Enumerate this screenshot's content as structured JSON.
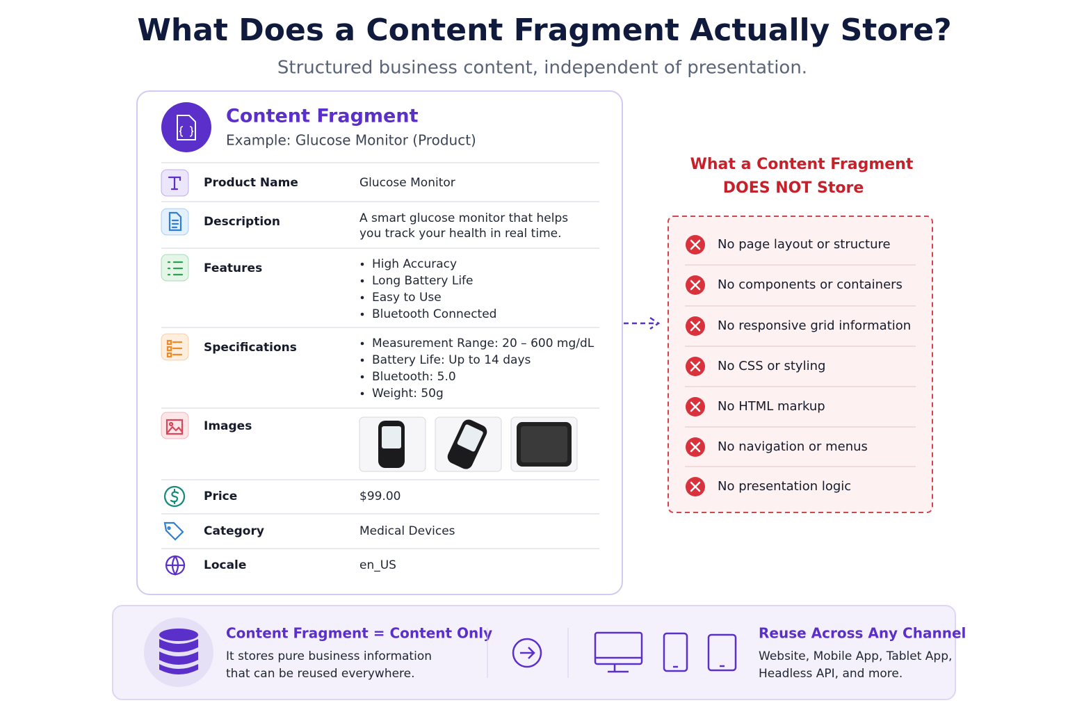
{
  "title": "What Does a Content Fragment Actually Store?",
  "subtitle": "Structured business content, independent of presentation.",
  "fragment": {
    "title": "Content Fragment",
    "subtitle": "Example: Glucose Monitor (Product)",
    "rows": [
      {
        "label": "Product Name",
        "value": "Glucose Monitor"
      },
      {
        "label": "Description",
        "lines": [
          "A smart glucose monitor that helps",
          "you track your health in real time."
        ]
      },
      {
        "label": "Features",
        "items": [
          "High Accuracy",
          "Long Battery Life",
          "Easy to Use",
          "Bluetooth Connected"
        ]
      },
      {
        "label": "Specifications",
        "items": [
          "Measurement Range: 20 – 600 mg/dL",
          "Battery Life: Up to 14 days",
          "Bluetooth: 5.0",
          "Weight: 50g"
        ]
      },
      {
        "label": "Images"
      },
      {
        "label": "Price",
        "value": "$99.00"
      },
      {
        "label": "Category",
        "value": "Medical Devices"
      },
      {
        "label": "Locale",
        "value": "en_US"
      }
    ]
  },
  "not_stored": {
    "title_lines": [
      "What a Content Fragment",
      "DOES NOT Store"
    ],
    "items": [
      "No page layout or structure",
      "No components or containers",
      "No responsive grid information",
      "No CSS or styling",
      "No HTML markup",
      "No navigation or menus",
      "No presentation logic"
    ]
  },
  "footer": {
    "left": {
      "title": "Content Fragment = Content Only",
      "lines": [
        "It stores pure business information",
        "that can be reused everywhere."
      ]
    },
    "right": {
      "title": "Reuse Across Any Channel",
      "lines": [
        "Website, Mobile App, Tablet App,",
        "Headless API, and more."
      ]
    }
  }
}
